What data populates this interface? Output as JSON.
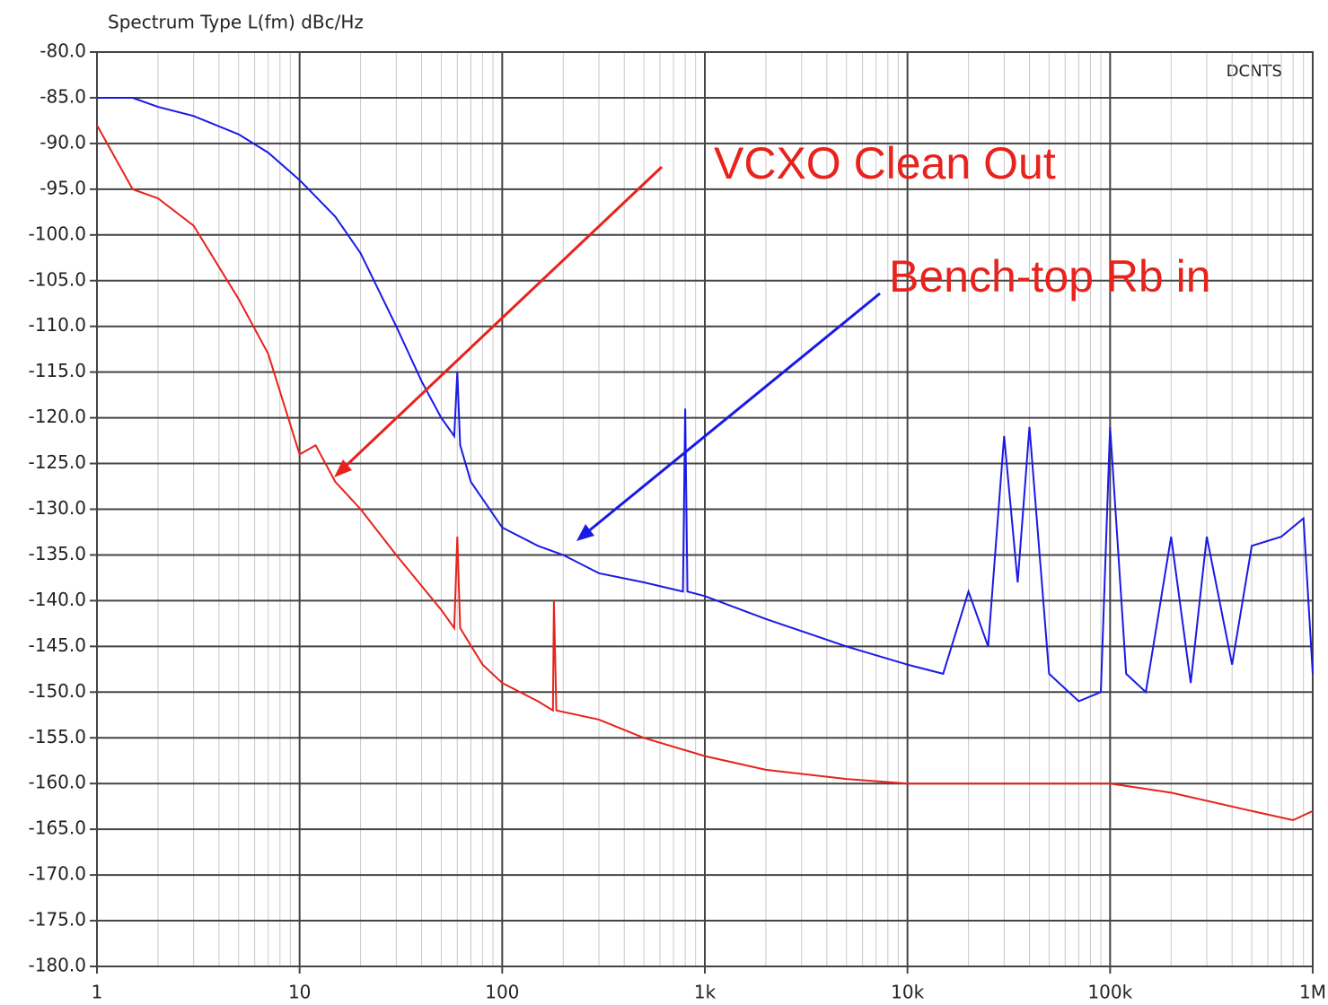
{
  "chart_data": {
    "type": "line",
    "title": "Spectrum Type  L(fm) dBc/Hz",
    "corner_label": "DCNTS",
    "xscale": "log",
    "grid": true,
    "xlim": [
      1,
      1000000
    ],
    "xticks": [
      {
        "value": 1,
        "label": "1"
      },
      {
        "value": 10,
        "label": "10"
      },
      {
        "value": 100,
        "label": "100"
      },
      {
        "value": 1000,
        "label": "1k"
      },
      {
        "value": 10000,
        "label": "10k"
      },
      {
        "value": 100000,
        "label": "100k"
      },
      {
        "value": 1000000,
        "label": "1M"
      }
    ],
    "ylim": [
      -180,
      -80
    ],
    "yticks": [
      {
        "value": -80,
        "label": "-80.0"
      },
      {
        "value": -85,
        "label": "-85.0"
      },
      {
        "value": -90,
        "label": "-90.0"
      },
      {
        "value": -95,
        "label": "-95.0"
      },
      {
        "value": -100,
        "label": "-100.0"
      },
      {
        "value": -105,
        "label": "-105.0"
      },
      {
        "value": -110,
        "label": "-110.0"
      },
      {
        "value": -115,
        "label": "-115.0"
      },
      {
        "value": -120,
        "label": "-120.0"
      },
      {
        "value": -125,
        "label": "-125.0"
      },
      {
        "value": -130,
        "label": "-130.0"
      },
      {
        "value": -135,
        "label": "-135.0"
      },
      {
        "value": -140,
        "label": "-140.0"
      },
      {
        "value": -145,
        "label": "-145.0"
      },
      {
        "value": -150,
        "label": "-150.0"
      },
      {
        "value": -155,
        "label": "-155.0"
      },
      {
        "value": -160,
        "label": "-160.0"
      },
      {
        "value": -165,
        "label": "-165.0"
      },
      {
        "value": -170,
        "label": "-170.0"
      },
      {
        "value": -175,
        "label": "-175.0"
      },
      {
        "value": -180,
        "label": "-180.0"
      }
    ],
    "series": [
      {
        "name": "VCXO Clean Out",
        "color": "#e8221c",
        "x": [
          1,
          1.5,
          2,
          3,
          5,
          7,
          10,
          12,
          15,
          20,
          30,
          50,
          58,
          60,
          62,
          80,
          100,
          150,
          178,
          180,
          185,
          300,
          500,
          1000,
          2000,
          5000,
          10000,
          100000,
          200000,
          500000,
          800000,
          1000000
        ],
        "values": [
          -88,
          -95,
          -96,
          -99,
          -107,
          -113,
          -124,
          -123,
          -127,
          -130,
          -135,
          -141,
          -143,
          -133,
          -143,
          -147,
          -149,
          -151,
          -152,
          -140,
          -152,
          -153,
          -155,
          -157,
          -158.5,
          -159.5,
          -160,
          -160,
          -161,
          -163,
          -164,
          -163
        ]
      },
      {
        "name": "Bench-top Rb in",
        "color": "#1a1ae6",
        "x": [
          1,
          1.5,
          2,
          3,
          5,
          7,
          10,
          15,
          20,
          30,
          40,
          50,
          58,
          60,
          62,
          70,
          100,
          150,
          200,
          300,
          500,
          780,
          800,
          820,
          1000,
          2000,
          5000,
          10000,
          15000,
          20000,
          25000,
          30000,
          35000,
          40000,
          50000,
          70000,
          90000,
          100000,
          120000,
          150000,
          200000,
          250000,
          300000,
          400000,
          500000,
          700000,
          900000,
          1000000
        ],
        "values": [
          -85,
          -85,
          -86,
          -87,
          -89,
          -91,
          -94,
          -98,
          -102,
          -110,
          -116,
          -120,
          -122,
          -115,
          -123,
          -127,
          -132,
          -134,
          -135,
          -137,
          -138,
          -139,
          -119,
          -139,
          -139.5,
          -142,
          -145,
          -147,
          -148,
          -139,
          -145,
          -122,
          -138,
          -121,
          -148,
          -151,
          -150,
          -121,
          -148,
          -150,
          -133,
          -149,
          -133,
          -147,
          -134,
          -133,
          -131,
          -148
        ]
      }
    ]
  }
}
